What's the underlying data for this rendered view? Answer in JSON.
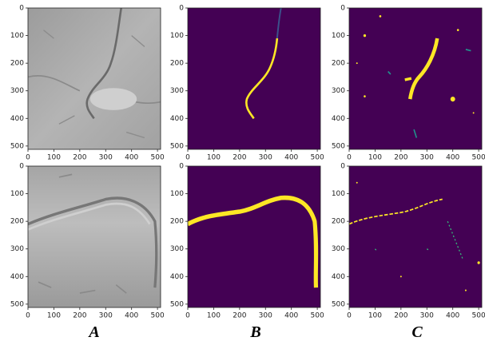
{
  "axes": {
    "xlim": [
      0,
      512
    ],
    "ylim": [
      0,
      512
    ],
    "xticks": [
      0,
      100,
      200,
      300,
      400,
      500
    ],
    "yticks": [
      0,
      100,
      200,
      300,
      400,
      500
    ]
  },
  "column_labels": [
    "A",
    "B",
    "C"
  ]
}
